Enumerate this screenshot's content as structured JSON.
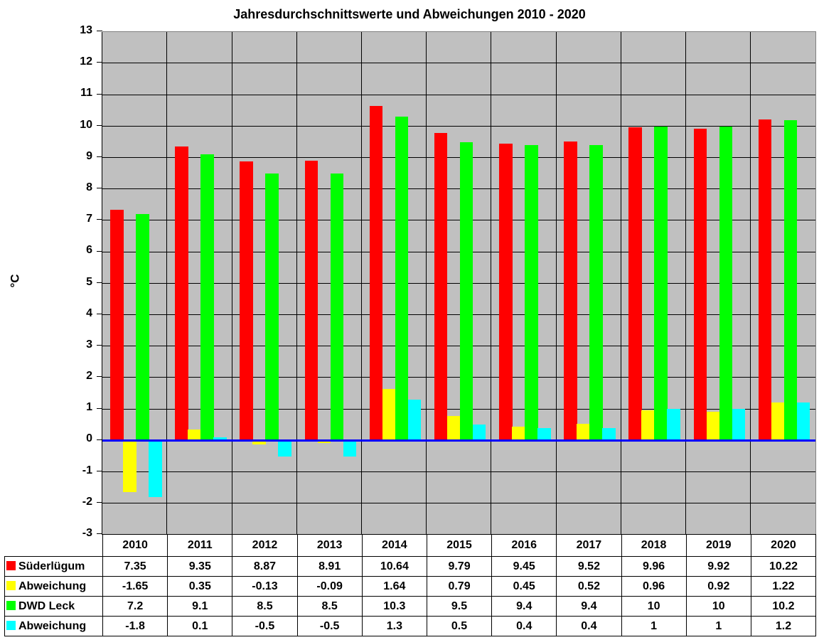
{
  "chart_data": {
    "type": "bar",
    "title": "Jahresdurchschnittswerte und Abweichungen 2010 - 2020",
    "xlabel": "",
    "ylabel": "°C",
    "ylim": [
      -3,
      13
    ],
    "yticks": [
      13,
      12,
      11,
      10,
      9,
      8,
      7,
      6,
      5,
      4,
      3,
      2,
      1,
      0,
      -1,
      -2,
      -3
    ],
    "grid": true,
    "legend_position": "data-table-below",
    "categories": [
      "2010",
      "2011",
      "2012",
      "2013",
      "2014",
      "2015",
      "2016",
      "2017",
      "2018",
      "2019",
      "2020"
    ],
    "series": [
      {
        "name": "Süderlügum",
        "color": "#ff0000",
        "values": [
          7.35,
          9.35,
          8.87,
          8.91,
          10.64,
          9.79,
          9.45,
          9.52,
          9.96,
          9.92,
          10.22
        ],
        "labels": [
          "7.35",
          "9.35",
          "8.87",
          "8.91",
          "10.64",
          "9.79",
          "9.45",
          "9.52",
          "9.96",
          "9.92",
          "10.22"
        ]
      },
      {
        "name": "Abweichung",
        "color": "#ffff00",
        "values": [
          -1.65,
          0.35,
          -0.13,
          -0.09,
          1.64,
          0.79,
          0.45,
          0.52,
          0.96,
          0.92,
          1.22
        ],
        "labels": [
          "-1.65",
          "0.35",
          "-0.13",
          "-0.09",
          "1.64",
          "0.79",
          "0.45",
          "0.52",
          "0.96",
          "0.92",
          "1.22"
        ]
      },
      {
        "name": "DWD Leck",
        "color": "#00ff00",
        "values": [
          7.2,
          9.1,
          8.5,
          8.5,
          10.3,
          9.5,
          9.4,
          9.4,
          10,
          10,
          10.2
        ],
        "labels": [
          "7.2",
          "9.1",
          "8.5",
          "8.5",
          "10.3",
          "9.5",
          "9.4",
          "9.4",
          "10",
          "10",
          "10.2"
        ]
      },
      {
        "name": "Abweichung",
        "color": "#00ffff",
        "values": [
          -1.8,
          0.1,
          -0.5,
          -0.5,
          1.3,
          0.5,
          0.4,
          0.4,
          1,
          1,
          1.2
        ],
        "labels": [
          "-1.8",
          "0.1",
          "-0.5",
          "-0.5",
          "1.3",
          "0.5",
          "0.4",
          "0.4",
          "1",
          "1",
          "1.2"
        ]
      }
    ],
    "zero_line_color": "#0000ff",
    "plot_background": "#c0c0c0"
  }
}
